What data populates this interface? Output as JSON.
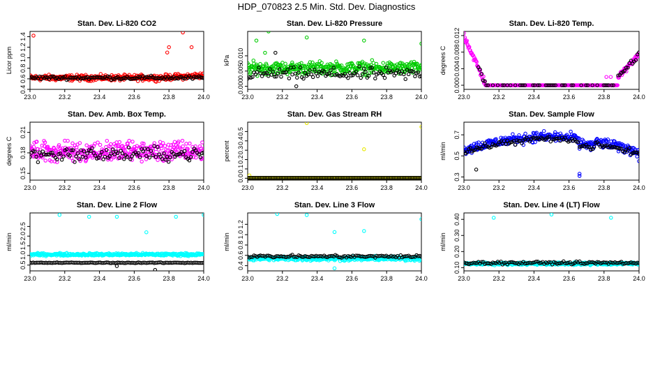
{
  "page": {
    "title": "HDP_070823  2.5 Min. Std. Dev. Diagnostics"
  },
  "chart_data": [
    {
      "type": "scatter",
      "title": "Stan. Dev. Li-820 CO2",
      "xlabel": "",
      "ylabel": "Licor ppm",
      "xlim": [
        23.0,
        24.0
      ],
      "ylim": [
        0.4,
        1.5
      ],
      "xticks": [
        "23.0",
        "23.2",
        "23.4",
        "23.6",
        "23.8",
        "24.0"
      ],
      "yticks": [
        "0.4",
        "0.6",
        "0.8",
        "1.0",
        "1.2",
        "1.4"
      ],
      "series": [
        {
          "name": "primary",
          "color": "#ff0000",
          "base": 0.62,
          "spread": 0.08,
          "trend": [
            [
              23.75,
              0.2
            ]
          ],
          "outliers": [
            [
              23.02,
              1.42
            ],
            [
              23.88,
              1.48
            ],
            [
              23.79,
              1.1
            ],
            [
              23.93,
              1.2
            ],
            [
              23.8,
              1.2
            ]
          ]
        },
        {
          "name": "reference",
          "color": "#000000",
          "base": 0.62,
          "spread": 0.05,
          "outliers": []
        }
      ]
    },
    {
      "type": "scatter",
      "title": "Stan. Dev. Li-820 Pressure",
      "xlabel": "",
      "ylabel": "kPa",
      "xlim": [
        23.0,
        24.0
      ],
      "ylim": [
        -0.001,
        0.018
      ],
      "xticks": [
        "23.0",
        "23.2",
        "23.4",
        "23.6",
        "23.8",
        "24.0"
      ],
      "yticks": [
        "0.000",
        "0.005",
        "0.010"
      ],
      "series": [
        {
          "name": "primary",
          "color": "#00cc00",
          "base": 0.006,
          "spread": 0.003,
          "outliers": [
            [
              23.12,
              0.018
            ],
            [
              23.34,
              0.016
            ],
            [
              23.05,
              0.015
            ],
            [
              23.67,
              0.015
            ],
            [
              24.0,
              0.014
            ],
            [
              23.1,
              0.011
            ]
          ]
        },
        {
          "name": "reference",
          "color": "#000000",
          "base": 0.004,
          "spread": 0.003,
          "outliers": [
            [
              23.16,
              0.011
            ],
            [
              23.28,
              0.0
            ]
          ]
        }
      ]
    },
    {
      "type": "scatter",
      "title": "Stan. Dev. Li-820 Temp.",
      "xlabel": "",
      "ylabel": "degrees C",
      "xlim": [
        23.0,
        24.0
      ],
      "ylim": [
        -0.001,
        0.013
      ],
      "xticks": [
        "23.0",
        "23.2",
        "23.4",
        "23.6",
        "23.8",
        "24.0"
      ],
      "yticks": [
        "0.000",
        "0.004",
        "0.008",
        "0.012"
      ],
      "series": [
        {
          "name": "primary",
          "color": "#ff00ff",
          "shape": "temp",
          "outliers": []
        },
        {
          "name": "reference",
          "color": "#000000",
          "shape": "temp-ref",
          "outliers": []
        }
      ]
    },
    {
      "type": "scatter",
      "title": "Stan. Dev. Amb. Box Temp.",
      "xlabel": "",
      "ylabel": "degrees C",
      "xlim": [
        23.0,
        24.0
      ],
      "ylim": [
        0.14,
        0.225
      ],
      "xticks": [
        "23.0",
        "23.2",
        "23.4",
        "23.6",
        "23.8",
        "24.0"
      ],
      "yticks": [
        "0.15",
        "0.18",
        "0.21"
      ],
      "series": [
        {
          "name": "primary",
          "color": "#ff00ff",
          "base": 0.182,
          "spread": 0.022,
          "outliers": []
        },
        {
          "name": "reference",
          "color": "#000000",
          "base": 0.178,
          "spread": 0.015,
          "outliers": []
        }
      ]
    },
    {
      "type": "scatter",
      "title": "Stan. Dev. Gas Stream RH",
      "xlabel": "",
      "ylabel": "percent",
      "xlim": [
        23.0,
        24.0
      ],
      "ylim": [
        -0.02,
        0.6
      ],
      "xticks": [
        "23.0",
        "23.2",
        "23.4",
        "23.6",
        "23.8",
        "24.0"
      ],
      "yticks": [
        "0.0",
        "0.1",
        "0.2",
        "0.3",
        "0.4",
        "0.5"
      ],
      "series": [
        {
          "name": "primary",
          "color": "#e8e800",
          "base": 0.005,
          "spread": 0.0,
          "outliers": [
            [
              23.34,
              0.59
            ],
            [
              24.0,
              0.55
            ],
            [
              23.67,
              0.31
            ],
            [
              23.01,
              0.03
            ]
          ]
        },
        {
          "name": "reference",
          "color": "#000000",
          "base": 0.005,
          "spread": 0.0,
          "outliers": []
        }
      ]
    },
    {
      "type": "scatter",
      "title": "Stan. Dev. Sample Flow",
      "xlabel": "",
      "ylabel": "ml/min",
      "xlim": [
        23.0,
        24.0
      ],
      "ylim": [
        0.27,
        0.82
      ],
      "xticks": [
        "23.0",
        "23.2",
        "23.4",
        "23.6",
        "23.8",
        "24.0"
      ],
      "yticks": [
        "0.3",
        "0.5",
        "0.7"
      ],
      "series": [
        {
          "name": "primary",
          "color": "#0000ff",
          "shape": "flow",
          "outliers": [
            [
              23.66,
              0.31
            ],
            [
              23.66,
              0.33
            ],
            [
              24.0,
              0.45
            ]
          ]
        },
        {
          "name": "reference",
          "color": "#000000",
          "shape": "flow-ref",
          "outliers": [
            [
              23.07,
              0.37
            ]
          ]
        }
      ]
    },
    {
      "type": "scatter",
      "title": "Stan. Dev. Line 2 Flow",
      "xlabel": "",
      "ylabel": "ml/min",
      "xlim": [
        23.0,
        24.0
      ],
      "ylim": [
        0.2,
        3.2
      ],
      "xticks": [
        "23.0",
        "23.2",
        "23.4",
        "23.6",
        "23.8",
        "24.0"
      ],
      "yticks": [
        "0.5",
        "1.0",
        "1.5",
        "2.0",
        "2.5"
      ],
      "series": [
        {
          "name": "primary",
          "color": "#00ffff",
          "base": 1.05,
          "spread": 0.1,
          "outliers": [
            [
              23.17,
              3.1
            ],
            [
              23.34,
              3.0
            ],
            [
              23.5,
              3.0
            ],
            [
              23.84,
              3.0
            ],
            [
              24.0,
              3.1
            ],
            [
              23.67,
              2.2
            ]
          ]
        },
        {
          "name": "reference",
          "color": "#000000",
          "base": 0.62,
          "spread": 0.03,
          "outliers": [
            [
              23.72,
              0.25
            ],
            [
              23.5,
              0.45
            ]
          ]
        }
      ]
    },
    {
      "type": "scatter",
      "title": "Stan. Dev. Line 3 Flow",
      "xlabel": "",
      "ylabel": "ml/min",
      "xlim": [
        23.0,
        24.0
      ],
      "ylim": [
        0.3,
        1.42
      ],
      "xticks": [
        "23.0",
        "23.2",
        "23.4",
        "23.6",
        "23.8",
        "24.0"
      ],
      "yticks": [
        "0.4",
        "0.6",
        "0.8",
        "1.0",
        "1.2"
      ],
      "series": [
        {
          "name": "primary",
          "color": "#00ffff",
          "base": 0.54,
          "spread": 0.06,
          "outliers": [
            [
              23.17,
              1.4
            ],
            [
              23.34,
              1.38
            ],
            [
              24.0,
              1.3
            ],
            [
              23.5,
              1.05
            ],
            [
              23.67,
              1.07
            ],
            [
              23.5,
              0.35
            ]
          ]
        },
        {
          "name": "reference",
          "color": "#000000",
          "base": 0.58,
          "spread": 0.04,
          "outliers": []
        }
      ]
    },
    {
      "type": "scatter",
      "title": "Stan. Dev. Line 4 (LT) Flow",
      "xlabel": "",
      "ylabel": "ml/min",
      "xlim": [
        23.0,
        24.0
      ],
      "ylim": [
        0.08,
        0.44
      ],
      "xticks": [
        "23.0",
        "23.2",
        "23.4",
        "23.6",
        "23.8",
        "24.0"
      ],
      "yticks": [
        "0.10",
        "0.20",
        "0.30",
        "0.40"
      ],
      "series": [
        {
          "name": "primary",
          "color": "#00ffff",
          "base": 0.125,
          "spread": 0.012,
          "outliers": [
            [
              23.17,
              0.41
            ],
            [
              23.5,
              0.43
            ],
            [
              23.84,
              0.41
            ]
          ]
        },
        {
          "name": "reference",
          "color": "#000000",
          "base": 0.13,
          "spread": 0.012,
          "outliers": []
        }
      ]
    }
  ]
}
